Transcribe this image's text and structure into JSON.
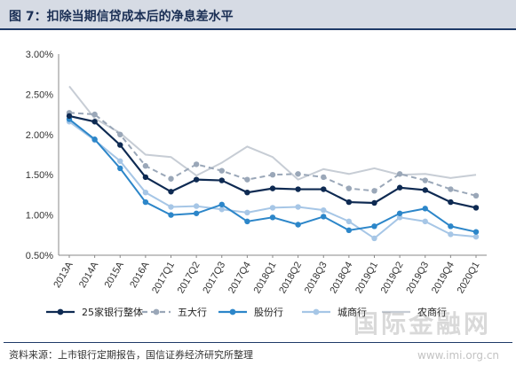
{
  "header": {
    "title": "图 7：扣除当期信贷成本后的净息差水平"
  },
  "footer": {
    "source": "资料来源：上市银行定期报告，国信证券经济研究所整理"
  },
  "watermark": {
    "text": "国际金融网",
    "url": "www.imi.org.cn"
  },
  "chart_data": {
    "type": "line",
    "categories": [
      "2013A",
      "2014A",
      "2015A",
      "2016A",
      "2017Q1",
      "2017Q2",
      "2017Q3",
      "2017Q4",
      "2018Q1",
      "2018Q2",
      "2018Q3",
      "2018Q4",
      "2019Q1",
      "2019Q2",
      "2019Q3",
      "2019Q4",
      "2020Q1"
    ],
    "ylim": [
      0.005,
      0.03
    ],
    "yticks": [
      "0.50%",
      "1.00%",
      "1.50%",
      "2.00%",
      "2.50%",
      "3.00%"
    ],
    "series": [
      {
        "name": "25家银行整体",
        "color": "#0e2a52",
        "dash": "solid",
        "marker": "circle",
        "values": [
          0.0223,
          0.0216,
          0.0187,
          0.0147,
          0.0129,
          0.0144,
          0.0143,
          0.0128,
          0.0133,
          0.0132,
          0.0132,
          0.0116,
          0.0115,
          0.0134,
          0.0131,
          0.0116,
          0.0109
        ]
      },
      {
        "name": "五大行",
        "color": "#9aa7b8",
        "dash": "dashed",
        "marker": "circle",
        "values": [
          0.0227,
          0.0225,
          0.02,
          0.0161,
          0.0145,
          0.0163,
          0.0155,
          0.0144,
          0.015,
          0.0151,
          0.0147,
          0.0133,
          0.013,
          0.0151,
          0.0143,
          0.0132,
          0.0124
        ]
      },
      {
        "name": "股份行",
        "color": "#2c86c9",
        "dash": "solid",
        "marker": "circle",
        "values": [
          0.0219,
          0.0194,
          0.0158,
          0.0116,
          0.01,
          0.0102,
          0.0113,
          0.0092,
          0.0097,
          0.0088,
          0.0098,
          0.0081,
          0.0086,
          0.0102,
          0.0108,
          0.0086,
          0.0079
        ]
      },
      {
        "name": "城商行",
        "color": "#a6c6e6",
        "dash": "solid",
        "marker": "circle",
        "values": [
          0.0216,
          0.0193,
          0.0167,
          0.0128,
          0.011,
          0.0111,
          0.0107,
          0.0103,
          0.0109,
          0.011,
          0.0106,
          0.0092,
          0.0071,
          0.0097,
          0.0092,
          0.0076,
          0.0073
        ]
      },
      {
        "name": "农商行",
        "color": "#c7cdd5",
        "dash": "solid",
        "marker": "none",
        "values": [
          0.026,
          0.022,
          0.0202,
          0.0175,
          0.0172,
          0.0149,
          0.0165,
          0.0185,
          0.0172,
          0.0144,
          0.0157,
          0.0151,
          0.0158,
          0.015,
          0.0151,
          0.0146,
          0.015
        ]
      }
    ]
  }
}
